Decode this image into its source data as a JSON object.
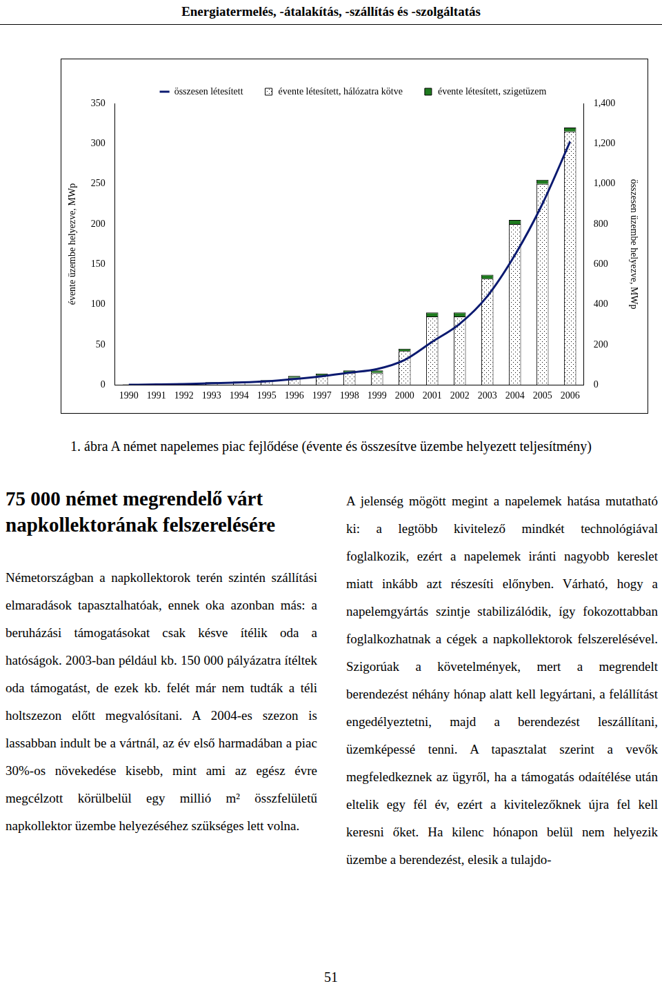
{
  "header": {
    "title": "Energiatermelés, -átalakítás, -szállítás és -szolgáltatás"
  },
  "chart_data": {
    "type": "bar",
    "stacked": true,
    "grid": false,
    "legend": "top",
    "categories": [
      "1990",
      "1991",
      "1992",
      "1993",
      "1994",
      "1995",
      "1996",
      "1997",
      "1998",
      "1999",
      "2000",
      "2001",
      "2002",
      "2003",
      "2004",
      "2005",
      "2006"
    ],
    "y_label": "évente üzembe helyezve, MWp",
    "y2_label": "összesen üzembe helyezve, MWp",
    "ylim": [
      0,
      350
    ],
    "yticks": [
      0,
      50,
      100,
      150,
      200,
      250,
      300,
      350
    ],
    "y2lim": [
      0,
      1400
    ],
    "y2ticks": [
      0,
      200,
      400,
      600,
      800,
      1000,
      1200,
      1400
    ],
    "series": [
      {
        "name": "évente létesített, hálózatra kötve",
        "type": "bar",
        "color": "#ffffff",
        "marker": "dots",
        "values": [
          0.5,
          1,
          1.5,
          3,
          4,
          5,
          9,
          12,
          15,
          15,
          42,
          85,
          85,
          132,
          200,
          250,
          315
        ]
      },
      {
        "name": "évente létesített, szigetüzem",
        "type": "bar",
        "color": "#1f7a1f",
        "values": [
          0.2,
          0.3,
          0.5,
          0.5,
          0.5,
          1,
          2,
          2,
          3,
          3,
          3,
          5,
          5,
          5,
          5,
          5,
          5
        ]
      },
      {
        "name": "összesen létesített",
        "type": "line",
        "color": "#0b1a70",
        "axis": "y2",
        "marker": "none",
        "values": [
          0.7,
          2,
          4,
          8,
          12,
          18,
          29,
          43,
          61,
          79,
          124,
          214,
          304,
          441,
          646,
          901,
          1210
        ]
      }
    ]
  },
  "caption": "1. ábra A német napelemes piac fejlődése (évente és összesítve üzembe helyezett teljesítmény)",
  "article": {
    "heading": "75 000 német megrendelő várt napkollektorának felszerelésére",
    "left": "Németországban a napkollektorok terén szintén szállítási elmaradások tapasztalhatóak, ennek oka azonban más: a beruházási támogatásokat csak késve ítélik oda a hatóságok. 2003-ban például kb. 150 000 pályázatra ítéltek oda támogatást, de ezek kb. felét már nem tudták a téli holtszezon előtt megvalósítani. A 2004-es szezon is lassabban indult be a vártnál, az év első harmadában a piac 30%-os növekedése kisebb, mint ami az egész évre megcélzott körülbelül egy millió m² összfelületű napkollektor üzembe helyezéséhez szükséges lett volna.",
    "right": "A jelenség mögött megint a napelemek hatása mutatható ki: a legtöbb kivitelező mindkét technológiával foglalkozik, ezért a napelemek iránti nagyobb kereslet miatt inkább azt részesíti előnyben. Várható, hogy a napelemgyártás szintje stabilizálódik, így fokozottabban foglalkozhatnak a cégek a napkollektorok felszerelésével. Szigorúak a követelmények, mert a megrendelt berendezést néhány hónap alatt kell legyártani, a felállítást engedélyeztetni, majd a berendezést leszállítani, üzemképessé tenni. A tapasztalat szerint a vevők megfeledkeznek az ügyről, ha a támogatás odaítélése után eltelik egy fél év, ezért a kivitelezőknek újra fel kell keresni őket. Ha kilenc hónapon belül nem helyezik üzembe a berendezést, elesik a tulajdo-"
  },
  "page_number": "51"
}
